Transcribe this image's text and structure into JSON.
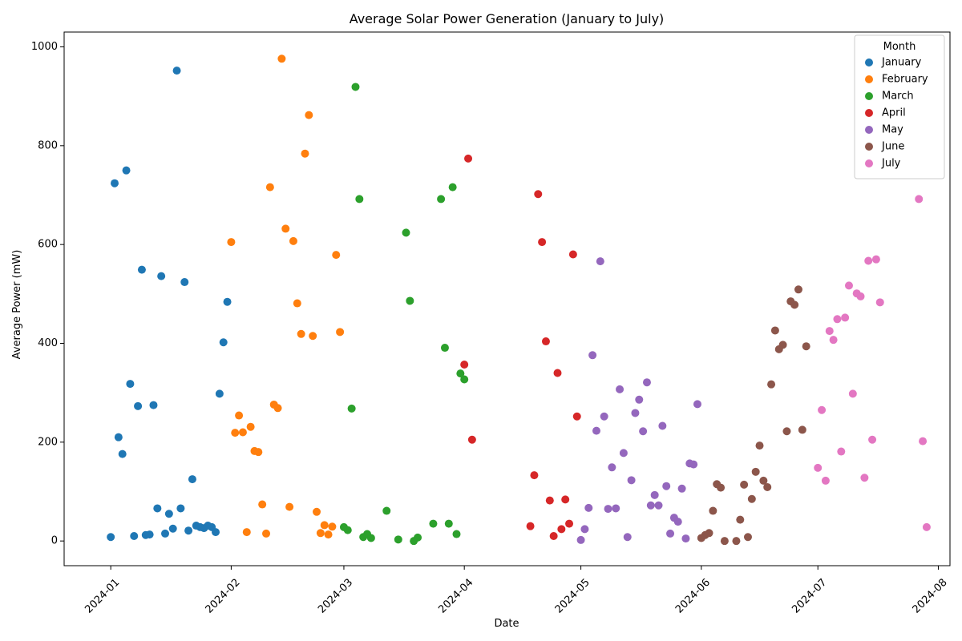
{
  "chart_data": {
    "type": "scatter",
    "title": "Average Solar Power Generation (January to July)",
    "xlabel": "Date",
    "ylabel": "Average Power (mW)",
    "xlim": [
      "2023-12-20",
      "2024-08-04"
    ],
    "ylim": [
      -50,
      1030
    ],
    "x_ticks": [
      "2024-01-01",
      "2024-02-01",
      "2024-03-01",
      "2024-04-01",
      "2024-05-01",
      "2024-06-01",
      "2024-07-01",
      "2024-08-01"
    ],
    "x_tick_labels": [
      "2024-01",
      "2024-02",
      "2024-03",
      "2024-04",
      "2024-05",
      "2024-06",
      "2024-07",
      "2024-08"
    ],
    "y_ticks": [
      0,
      200,
      400,
      600,
      800,
      1000
    ],
    "y_tick_labels": [
      "0",
      "200",
      "400",
      "600",
      "800",
      "1000"
    ],
    "legend": {
      "title": "Month",
      "placement": "top-right"
    },
    "series": [
      {
        "name": "January",
        "color": "#1f77b4",
        "points": [
          [
            "2024-01-01",
            8
          ],
          [
            "2024-01-02",
            724
          ],
          [
            "2024-01-03",
            210
          ],
          [
            "2024-01-04",
            176
          ],
          [
            "2024-01-05",
            750
          ],
          [
            "2024-01-06",
            318
          ],
          [
            "2024-01-07",
            10
          ],
          [
            "2024-01-08",
            273
          ],
          [
            "2024-01-09",
            549
          ],
          [
            "2024-01-10",
            12
          ],
          [
            "2024-01-11",
            13
          ],
          [
            "2024-01-12",
            275
          ],
          [
            "2024-01-13",
            66
          ],
          [
            "2024-01-14",
            536
          ],
          [
            "2024-01-15",
            15
          ],
          [
            "2024-01-16",
            55
          ],
          [
            "2024-01-17",
            25
          ],
          [
            "2024-01-18",
            952
          ],
          [
            "2024-01-19",
            66
          ],
          [
            "2024-01-20",
            524
          ],
          [
            "2024-01-21",
            21
          ],
          [
            "2024-01-22",
            125
          ],
          [
            "2024-01-23",
            31
          ],
          [
            "2024-01-24",
            28
          ],
          [
            "2024-01-25",
            26
          ],
          [
            "2024-01-26",
            31
          ],
          [
            "2024-01-27",
            28
          ],
          [
            "2024-01-28",
            18
          ],
          [
            "2024-01-29",
            298
          ],
          [
            "2024-01-30",
            402
          ],
          [
            "2024-01-31",
            484
          ]
        ]
      },
      {
        "name": "February",
        "color": "#ff7f0e",
        "points": [
          [
            "2024-02-01",
            605
          ],
          [
            "2024-02-02",
            219
          ],
          [
            "2024-02-03",
            254
          ],
          [
            "2024-02-04",
            220
          ],
          [
            "2024-02-05",
            18
          ],
          [
            "2024-02-06",
            231
          ],
          [
            "2024-02-07",
            182
          ],
          [
            "2024-02-08",
            180
          ],
          [
            "2024-02-09",
            74
          ],
          [
            "2024-02-10",
            15
          ],
          [
            "2024-02-11",
            716
          ],
          [
            "2024-02-12",
            276
          ],
          [
            "2024-02-13",
            269
          ],
          [
            "2024-02-14",
            976
          ],
          [
            "2024-02-15",
            632
          ],
          [
            "2024-02-16",
            69
          ],
          [
            "2024-02-17",
            607
          ],
          [
            "2024-02-18",
            481
          ],
          [
            "2024-02-19",
            419
          ],
          [
            "2024-02-20",
            784
          ],
          [
            "2024-02-21",
            862
          ],
          [
            "2024-02-22",
            415
          ],
          [
            "2024-02-23",
            59
          ],
          [
            "2024-02-24",
            16
          ],
          [
            "2024-02-25",
            32
          ],
          [
            "2024-02-26",
            13
          ],
          [
            "2024-02-27",
            29
          ],
          [
            "2024-02-28",
            579
          ],
          [
            "2024-02-29",
            423
          ]
        ]
      },
      {
        "name": "March",
        "color": "#2ca02c",
        "points": [
          [
            "2024-03-01",
            28
          ],
          [
            "2024-03-02",
            22
          ],
          [
            "2024-03-03",
            268
          ],
          [
            "2024-03-04",
            919
          ],
          [
            "2024-03-05",
            692
          ],
          [
            "2024-03-06",
            8
          ],
          [
            "2024-03-07",
            14
          ],
          [
            "2024-03-08",
            6
          ],
          [
            "2024-03-12",
            61
          ],
          [
            "2024-03-15",
            3
          ],
          [
            "2024-03-17",
            624
          ],
          [
            "2024-03-18",
            486
          ],
          [
            "2024-03-19",
            0
          ],
          [
            "2024-03-20",
            7
          ],
          [
            "2024-03-24",
            35
          ],
          [
            "2024-03-26",
            692
          ],
          [
            "2024-03-27",
            391
          ],
          [
            "2024-03-28",
            35
          ],
          [
            "2024-03-29",
            716
          ],
          [
            "2024-03-30",
            14
          ],
          [
            "2024-03-31",
            339
          ],
          [
            "2024-04-01",
            327
          ]
        ]
      },
      {
        "name": "April",
        "color": "#d62728",
        "points": [
          [
            "2024-04-01",
            357
          ],
          [
            "2024-04-02",
            774
          ],
          [
            "2024-04-03",
            205
          ],
          [
            "2024-04-18",
            30
          ],
          [
            "2024-04-19",
            133
          ],
          [
            "2024-04-20",
            702
          ],
          [
            "2024-04-21",
            605
          ],
          [
            "2024-04-22",
            404
          ],
          [
            "2024-04-23",
            82
          ],
          [
            "2024-04-24",
            10
          ],
          [
            "2024-04-25",
            340
          ],
          [
            "2024-04-26",
            24
          ],
          [
            "2024-04-27",
            84
          ],
          [
            "2024-04-28",
            35
          ],
          [
            "2024-04-29",
            580
          ],
          [
            "2024-04-30",
            252
          ]
        ]
      },
      {
        "name": "May",
        "color": "#9467bd",
        "points": [
          [
            "2024-05-01",
            2
          ],
          [
            "2024-05-02",
            24
          ],
          [
            "2024-05-03",
            67
          ],
          [
            "2024-05-04",
            376
          ],
          [
            "2024-05-05",
            223
          ],
          [
            "2024-05-06",
            566
          ],
          [
            "2024-05-07",
            252
          ],
          [
            "2024-05-08",
            65
          ],
          [
            "2024-05-09",
            149
          ],
          [
            "2024-05-10",
            66
          ],
          [
            "2024-05-11",
            307
          ],
          [
            "2024-05-12",
            178
          ],
          [
            "2024-05-13",
            8
          ],
          [
            "2024-05-14",
            123
          ],
          [
            "2024-05-15",
            259
          ],
          [
            "2024-05-16",
            286
          ],
          [
            "2024-05-17",
            222
          ],
          [
            "2024-05-18",
            321
          ],
          [
            "2024-05-19",
            72
          ],
          [
            "2024-05-20",
            93
          ],
          [
            "2024-05-21",
            72
          ],
          [
            "2024-05-22",
            233
          ],
          [
            "2024-05-23",
            111
          ],
          [
            "2024-05-24",
            15
          ],
          [
            "2024-05-25",
            47
          ],
          [
            "2024-05-26",
            39
          ],
          [
            "2024-05-27",
            106
          ],
          [
            "2024-05-28",
            5
          ],
          [
            "2024-05-29",
            157
          ],
          [
            "2024-05-30",
            155
          ],
          [
            "2024-05-31",
            277
          ]
        ]
      },
      {
        "name": "June",
        "color": "#8c564b",
        "points": [
          [
            "2024-06-01",
            6
          ],
          [
            "2024-06-02",
            12
          ],
          [
            "2024-06-03",
            16
          ],
          [
            "2024-06-04",
            61
          ],
          [
            "2024-06-05",
            115
          ],
          [
            "2024-06-06",
            108
          ],
          [
            "2024-06-07",
            0
          ],
          [
            "2024-06-10",
            0
          ],
          [
            "2024-06-11",
            43
          ],
          [
            "2024-06-12",
            114
          ],
          [
            "2024-06-13",
            8
          ],
          [
            "2024-06-14",
            85
          ],
          [
            "2024-06-15",
            140
          ],
          [
            "2024-06-16",
            193
          ],
          [
            "2024-06-17",
            122
          ],
          [
            "2024-06-18",
            109
          ],
          [
            "2024-06-19",
            317
          ],
          [
            "2024-06-20",
            426
          ],
          [
            "2024-06-21",
            388
          ],
          [
            "2024-06-22",
            397
          ],
          [
            "2024-06-23",
            222
          ],
          [
            "2024-06-24",
            485
          ],
          [
            "2024-06-25",
            478
          ],
          [
            "2024-06-26",
            509
          ],
          [
            "2024-06-27",
            225
          ],
          [
            "2024-06-28",
            394
          ]
        ]
      },
      {
        "name": "July",
        "color": "#e377c2",
        "points": [
          [
            "2024-07-01",
            148
          ],
          [
            "2024-07-02",
            265
          ],
          [
            "2024-07-03",
            122
          ],
          [
            "2024-07-04",
            425
          ],
          [
            "2024-07-05",
            407
          ],
          [
            "2024-07-06",
            449
          ],
          [
            "2024-07-07",
            181
          ],
          [
            "2024-07-08",
            452
          ],
          [
            "2024-07-09",
            517
          ],
          [
            "2024-07-10",
            298
          ],
          [
            "2024-07-11",
            501
          ],
          [
            "2024-07-12",
            495
          ],
          [
            "2024-07-13",
            128
          ],
          [
            "2024-07-14",
            567
          ],
          [
            "2024-07-15",
            205
          ],
          [
            "2024-07-16",
            570
          ],
          [
            "2024-07-17",
            483
          ],
          [
            "2024-07-27",
            692
          ],
          [
            "2024-07-28",
            202
          ],
          [
            "2024-07-29",
            28
          ]
        ]
      }
    ]
  }
}
